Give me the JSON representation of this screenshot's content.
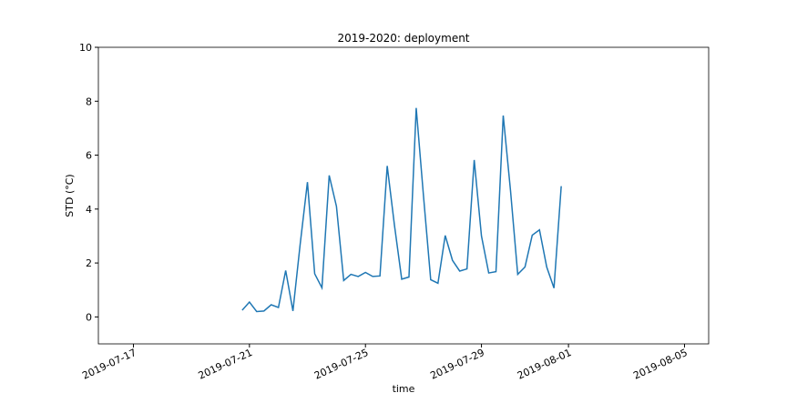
{
  "chart_data": {
    "type": "line",
    "title": "2019-2020: deployment",
    "x_label": "time",
    "y_label": "STD (°C)",
    "x": [
      "2019-07-20T18:00",
      "2019-07-21T00:00",
      "2019-07-21T06:00",
      "2019-07-21T12:00",
      "2019-07-21T18:00",
      "2019-07-22T00:00",
      "2019-07-22T06:00",
      "2019-07-22T12:00",
      "2019-07-22T18:00",
      "2019-07-23T00:00",
      "2019-07-23T06:00",
      "2019-07-23T12:00",
      "2019-07-23T18:00",
      "2019-07-24T00:00",
      "2019-07-24T06:00",
      "2019-07-24T12:00",
      "2019-07-24T18:00",
      "2019-07-25T00:00",
      "2019-07-25T06:00",
      "2019-07-25T12:00",
      "2019-07-25T18:00",
      "2019-07-26T00:00",
      "2019-07-26T06:00",
      "2019-07-26T12:00",
      "2019-07-26T18:00",
      "2019-07-27T00:00",
      "2019-07-27T06:00",
      "2019-07-27T12:00",
      "2019-07-27T18:00",
      "2019-07-28T00:00",
      "2019-07-28T06:00",
      "2019-07-28T12:00",
      "2019-07-28T18:00",
      "2019-07-29T00:00",
      "2019-07-29T06:00",
      "2019-07-29T12:00",
      "2019-07-29T18:00",
      "2019-07-30T00:00",
      "2019-07-30T06:00",
      "2019-07-30T12:00",
      "2019-07-30T18:00",
      "2019-07-31T00:00",
      "2019-07-31T06:00",
      "2019-07-31T12:00",
      "2019-07-31T18:00"
    ],
    "series": [
      {
        "name": "STD",
        "color": "#1f77b4",
        "values": [
          0.25,
          0.55,
          0.2,
          0.22,
          0.45,
          0.35,
          1.72,
          0.22,
          2.7,
          5.0,
          1.6,
          1.08,
          5.25,
          4.1,
          1.35,
          1.58,
          1.5,
          1.65,
          1.5,
          1.52,
          5.6,
          3.4,
          1.4,
          1.48,
          7.75,
          4.5,
          1.38,
          1.25,
          3.02,
          2.1,
          1.7,
          1.78,
          5.82,
          3.0,
          1.63,
          1.68,
          7.47,
          4.7,
          1.58,
          1.85,
          3.03,
          3.23,
          1.85,
          1.07,
          4.85
        ]
      }
    ],
    "xlim": [
      "2019-07-15T19:00",
      "2019-08-05T20:00"
    ],
    "xticks": [
      "2019-07-17",
      "2019-07-21",
      "2019-07-25",
      "2019-07-29",
      "2019-08-01",
      "2019-08-05"
    ],
    "ylim": [
      -1,
      10
    ],
    "yticks": [
      0,
      2,
      4,
      6,
      8,
      10
    ]
  }
}
